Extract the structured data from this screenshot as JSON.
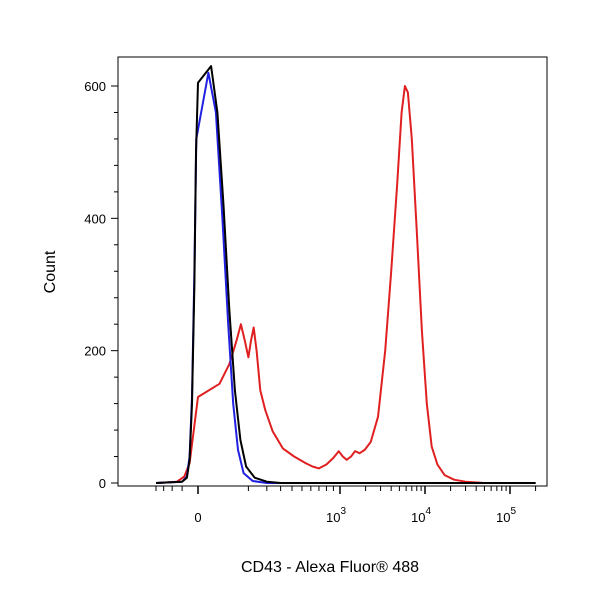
{
  "chart_data": {
    "type": "line",
    "xlabel": "CD43 - Alexa Fluor® 488",
    "ylabel": "Count",
    "x_scale": "biexponential",
    "xlim": [
      -400,
      200000
    ],
    "ylim": [
      -10,
      650
    ],
    "grid": false,
    "legend": "none",
    "x_ticks": [
      {
        "value": 0,
        "base": "0",
        "exp": ""
      },
      {
        "value": 1000,
        "base": "10",
        "exp": "3"
      },
      {
        "value": 10000,
        "base": "10",
        "exp": "4"
      },
      {
        "value": 100000,
        "base": "10",
        "exp": "5"
      }
    ],
    "y_ticks": [
      {
        "value": 0,
        "label": "0"
      },
      {
        "value": 200,
        "label": "200"
      },
      {
        "value": 400,
        "label": "400"
      },
      {
        "value": 600,
        "label": "600"
      }
    ],
    "series": [
      {
        "color": "#e02020",
        "points": [
          [
            -400,
            0
          ],
          [
            -150,
            2
          ],
          [
            -80,
            10
          ],
          [
            -40,
            30
          ],
          [
            -15,
            80
          ],
          [
            0,
            130
          ],
          [
            15,
            150
          ],
          [
            35,
            180
          ],
          [
            55,
            215
          ],
          [
            70,
            240
          ],
          [
            85,
            215
          ],
          [
            100,
            190
          ],
          [
            112,
            215
          ],
          [
            125,
            235
          ],
          [
            140,
            200
          ],
          [
            160,
            140
          ],
          [
            190,
            110
          ],
          [
            240,
            78
          ],
          [
            320,
            52
          ],
          [
            420,
            40
          ],
          [
            540,
            30
          ],
          [
            620,
            25
          ],
          [
            700,
            22
          ],
          [
            800,
            28
          ],
          [
            900,
            38
          ],
          [
            980,
            48
          ],
          [
            1080,
            40
          ],
          [
            1200,
            35
          ],
          [
            1350,
            40
          ],
          [
            1500,
            48
          ],
          [
            1700,
            45
          ],
          [
            1950,
            50
          ],
          [
            2300,
            62
          ],
          [
            2800,
            100
          ],
          [
            3400,
            200
          ],
          [
            4000,
            320
          ],
          [
            4700,
            450
          ],
          [
            5300,
            560
          ],
          [
            5800,
            600
          ],
          [
            6300,
            590
          ],
          [
            7000,
            520
          ],
          [
            8000,
            380
          ],
          [
            9200,
            230
          ],
          [
            10500,
            120
          ],
          [
            12000,
            55
          ],
          [
            14000,
            28
          ],
          [
            17000,
            12
          ],
          [
            22000,
            5
          ],
          [
            30000,
            2
          ],
          [
            50000,
            0
          ],
          [
            200000,
            0
          ]
        ]
      },
      {
        "color": "#2020e0",
        "points": [
          [
            -400,
            0
          ],
          [
            -100,
            2
          ],
          [
            -60,
            10
          ],
          [
            -40,
            40
          ],
          [
            -25,
            130
          ],
          [
            -12,
            320
          ],
          [
            -4,
            520
          ],
          [
            3,
            620
          ],
          [
            10,
            560
          ],
          [
            20,
            400
          ],
          [
            32,
            240
          ],
          [
            45,
            120
          ],
          [
            60,
            50
          ],
          [
            80,
            15
          ],
          [
            120,
            3
          ],
          [
            200,
            0
          ],
          [
            200000,
            0
          ]
        ]
      },
      {
        "color": "#000000",
        "points": [
          [
            -400,
            0
          ],
          [
            -100,
            2
          ],
          [
            -60,
            8
          ],
          [
            -40,
            35
          ],
          [
            -25,
            120
          ],
          [
            -12,
            300
          ],
          [
            -5,
            500
          ],
          [
            0,
            605
          ],
          [
            5,
            630
          ],
          [
            12,
            560
          ],
          [
            22,
            420
          ],
          [
            35,
            260
          ],
          [
            50,
            140
          ],
          [
            68,
            65
          ],
          [
            90,
            25
          ],
          [
            130,
            8
          ],
          [
            200,
            2
          ],
          [
            300,
            0
          ],
          [
            200000,
            0
          ]
        ]
      }
    ]
  }
}
